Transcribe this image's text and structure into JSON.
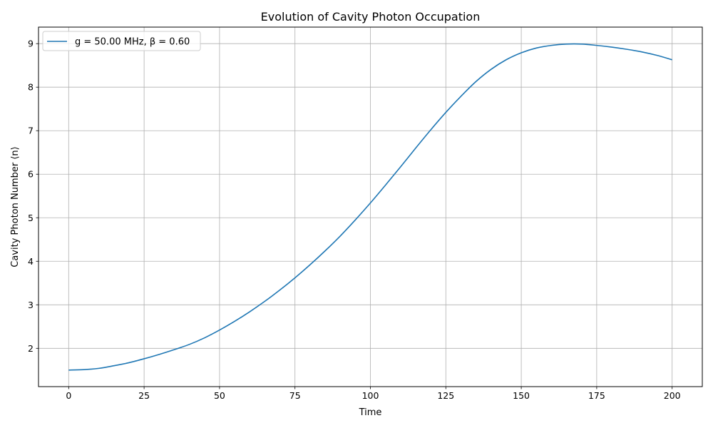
{
  "chart_data": {
    "type": "line",
    "title": "Evolution of Cavity Photon Occupation",
    "xlabel": "Time",
    "ylabel": "Cavity Photon Number ⟨n⟩",
    "xlim": [
      -10,
      210
    ],
    "ylim": [
      1.12,
      9.38
    ],
    "x_ticks": [
      0,
      25,
      50,
      75,
      100,
      125,
      150,
      175,
      200
    ],
    "x_tick_labels": [
      "0",
      "25",
      "50",
      "75",
      "100",
      "125",
      "150",
      "175",
      "200"
    ],
    "y_ticks": [
      2,
      3,
      4,
      5,
      6,
      7,
      8,
      9
    ],
    "y_tick_labels": [
      "2",
      "3",
      "4",
      "5",
      "6",
      "7",
      "8",
      "9"
    ],
    "grid": true,
    "legend_position": "upper-left",
    "series": [
      {
        "name": "g = 50.00 MHz, β = 0.60",
        "color": "#1f77b4",
        "x": [
          0,
          5,
          10,
          15,
          20,
          25,
          30,
          35,
          40,
          45,
          50,
          55,
          60,
          65,
          70,
          75,
          80,
          85,
          90,
          95,
          100,
          105,
          110,
          115,
          120,
          125,
          130,
          135,
          140,
          145,
          150,
          155,
          160,
          165,
          170,
          175,
          180,
          185,
          190,
          195,
          200
        ],
        "y": [
          1.5,
          1.51,
          1.54,
          1.6,
          1.67,
          1.76,
          1.86,
          1.97,
          2.09,
          2.24,
          2.42,
          2.62,
          2.84,
          3.08,
          3.34,
          3.62,
          3.92,
          4.24,
          4.58,
          4.95,
          5.34,
          5.75,
          6.17,
          6.6,
          7.02,
          7.42,
          7.79,
          8.13,
          8.41,
          8.63,
          8.79,
          8.9,
          8.96,
          8.99,
          8.99,
          8.96,
          8.92,
          8.87,
          8.81,
          8.73,
          8.63
        ]
      }
    ]
  }
}
